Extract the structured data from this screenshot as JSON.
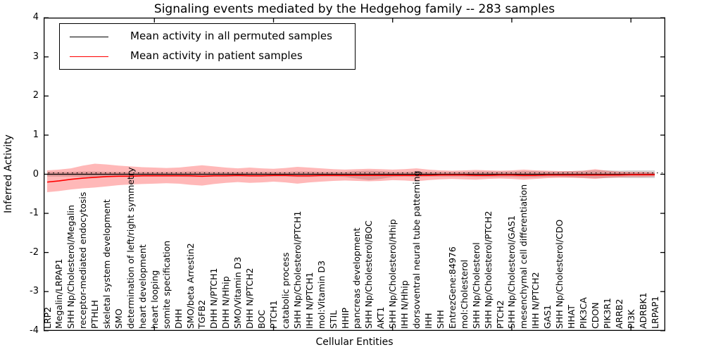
{
  "title": "Signaling events mediated by the Hedgehog family -- 283 samples",
  "axes": {
    "ylabel": "Inferred Activity",
    "xlabel": "Cellular Entities",
    "yticks": [
      "4",
      "3",
      "2",
      "1",
      "0",
      "-1",
      "-2",
      "-3",
      "-4"
    ],
    "ytick_values": [
      4,
      3,
      2,
      1,
      0,
      -1,
      -2,
      -3,
      -4
    ]
  },
  "legend": {
    "items": [
      {
        "label": "Mean activity in all permuted samples",
        "color": "#000000"
      },
      {
        "label": "Mean activity in patient samples",
        "color": "#ff0000"
      }
    ]
  },
  "chart_data": {
    "type": "line",
    "title": "Signaling events mediated by the Hedgehog family -- 283 samples",
    "xlabel": "Cellular Entities",
    "ylabel": "Inferred Activity",
    "ylim": [
      -4,
      4
    ],
    "grid": false,
    "legend_position": "upper left",
    "zero_line_style": "dotted",
    "top_tick_indices": [
      9,
      19,
      29,
      39,
      49
    ],
    "categories": [
      "LRP2",
      "Megalin/LRPAP1",
      "SHH Np/Cholesterol/Megalin",
      "receptor-mediated endocytosis",
      "PTHLH",
      "skeletal system development",
      "SMO",
      "determination of left/right symmetry",
      "heart development",
      "heart looping",
      "somite specification",
      "DHH",
      "SMO/beta Arrestin2",
      "TGFB2",
      "DHH N/PTCH1",
      "DHH N/Hhip",
      "SMO/Vitamin D3",
      "DHH N/PTCH2",
      "BOC",
      "PTCH1",
      "catabolic process",
      "SHH Np/Cholesterol/PTCH1",
      "IHH N/PTCH1",
      "mol:Vitamin D3",
      "STIL",
      "HHIP",
      "pancreas development",
      "SHH Np/Cholesterol/BOC",
      "AKT1",
      "SHH Np/Cholesterol/Hhip",
      "IHH N/Hhip",
      "dorsoventral neural tube patterning",
      "IHH",
      "SHH",
      "EntrezGene:84976",
      "mol:Cholesterol",
      "SHH Np/Cholesterol",
      "SHH Np/Cholesterol/PTCH2",
      "PTCH2",
      "SHH Np/Cholesterol/GAS1",
      "mesenchymal cell differentiation",
      "IHH N/PTCH2",
      "GAS1",
      "SHH Np/Cholesterol/CDO",
      "HHAT",
      "PIK3CA",
      "CDON",
      "PIK3R1",
      "ARRB2",
      "PI3K",
      "ADRBK1",
      "LRPAP1"
    ],
    "series": [
      {
        "name": "Mean activity in all permuted samples",
        "color": "#000000",
        "band_color": "rgba(0,0,0,0.16)",
        "values": [
          0,
          0,
          0,
          0,
          0,
          0,
          0,
          0,
          0,
          0,
          0,
          0,
          0,
          0,
          0,
          0,
          0,
          0,
          0,
          0,
          0,
          0,
          0,
          0,
          0,
          0,
          0,
          0,
          0,
          0,
          0,
          0,
          0,
          0,
          0,
          0,
          0,
          0,
          0,
          0,
          0,
          0,
          0,
          0,
          0,
          0,
          0,
          0,
          0,
          0,
          0,
          0
        ],
        "band_upper": [
          0.06,
          0.06,
          0.06,
          0.07,
          0.07,
          0.06,
          0.06,
          0.06,
          0.06,
          0.06,
          0.06,
          0.06,
          0.07,
          0.07,
          0.06,
          0.06,
          0.06,
          0.06,
          0.06,
          0.06,
          0.06,
          0.07,
          0.07,
          0.06,
          0.06,
          0.06,
          0.08,
          0.09,
          0.08,
          0.06,
          0.06,
          0.07,
          0.06,
          0.06,
          0.06,
          0.06,
          0.07,
          0.07,
          0.07,
          0.07,
          0.08,
          0.08,
          0.07,
          0.07,
          0.08,
          0.09,
          0.1,
          0.1,
          0.09,
          0.1,
          0.1,
          0.1
        ],
        "band_lower": [
          -0.06,
          -0.06,
          -0.06,
          -0.07,
          -0.07,
          -0.06,
          -0.06,
          -0.06,
          -0.06,
          -0.06,
          -0.06,
          -0.06,
          -0.07,
          -0.07,
          -0.06,
          -0.06,
          -0.06,
          -0.06,
          -0.06,
          -0.06,
          -0.06,
          -0.07,
          -0.07,
          -0.06,
          -0.06,
          -0.07,
          -0.11,
          -0.15,
          -0.12,
          -0.07,
          -0.06,
          -0.07,
          -0.06,
          -0.06,
          -0.06,
          -0.06,
          -0.07,
          -0.07,
          -0.07,
          -0.07,
          -0.08,
          -0.08,
          -0.07,
          -0.07,
          -0.08,
          -0.09,
          -0.1,
          -0.1,
          -0.09,
          -0.1,
          -0.1,
          -0.1
        ]
      },
      {
        "name": "Mean activity in patient samples",
        "color": "#ff0000",
        "band_color": "rgba(255,0,0,0.28)",
        "values": [
          -0.2,
          -0.17,
          -0.13,
          -0.1,
          -0.08,
          -0.06,
          -0.05,
          -0.05,
          -0.04,
          -0.04,
          -0.04,
          -0.04,
          -0.04,
          -0.05,
          -0.04,
          -0.04,
          -0.03,
          -0.04,
          -0.04,
          -0.03,
          -0.03,
          -0.04,
          -0.04,
          -0.03,
          -0.03,
          -0.03,
          -0.03,
          -0.03,
          -0.03,
          -0.03,
          -0.03,
          -0.03,
          -0.03,
          -0.02,
          -0.02,
          -0.02,
          -0.03,
          -0.03,
          -0.02,
          -0.02,
          -0.03,
          -0.03,
          -0.02,
          -0.02,
          -0.02,
          -0.02,
          -0.02,
          -0.02,
          -0.02,
          -0.01,
          -0.01,
          -0.01
        ],
        "band_upper": [
          0.1,
          0.12,
          0.15,
          0.22,
          0.27,
          0.25,
          0.22,
          0.2,
          0.18,
          0.17,
          0.16,
          0.17,
          0.2,
          0.23,
          0.2,
          0.17,
          0.15,
          0.17,
          0.15,
          0.14,
          0.16,
          0.19,
          0.17,
          0.15,
          0.13,
          0.12,
          0.13,
          0.14,
          0.13,
          0.12,
          0.13,
          0.15,
          0.12,
          0.1,
          0.09,
          0.1,
          0.11,
          0.1,
          0.09,
          0.1,
          0.12,
          0.1,
          0.09,
          0.08,
          0.08,
          0.09,
          0.13,
          0.09,
          0.07,
          0.06,
          0.06,
          0.05
        ],
        "band_lower": [
          -0.46,
          -0.43,
          -0.39,
          -0.36,
          -0.34,
          -0.31,
          -0.28,
          -0.26,
          -0.25,
          -0.24,
          -0.23,
          -0.24,
          -0.27,
          -0.29,
          -0.25,
          -0.22,
          -0.2,
          -0.22,
          -0.21,
          -0.19,
          -0.21,
          -0.24,
          -0.21,
          -0.19,
          -0.17,
          -0.16,
          -0.17,
          -0.18,
          -0.17,
          -0.15,
          -0.16,
          -0.18,
          -0.15,
          -0.13,
          -0.12,
          -0.13,
          -0.14,
          -0.12,
          -0.11,
          -0.12,
          -0.14,
          -0.12,
          -0.1,
          -0.09,
          -0.09,
          -0.1,
          -0.12,
          -0.09,
          -0.08,
          -0.07,
          -0.07,
          -0.06
        ]
      }
    ]
  }
}
